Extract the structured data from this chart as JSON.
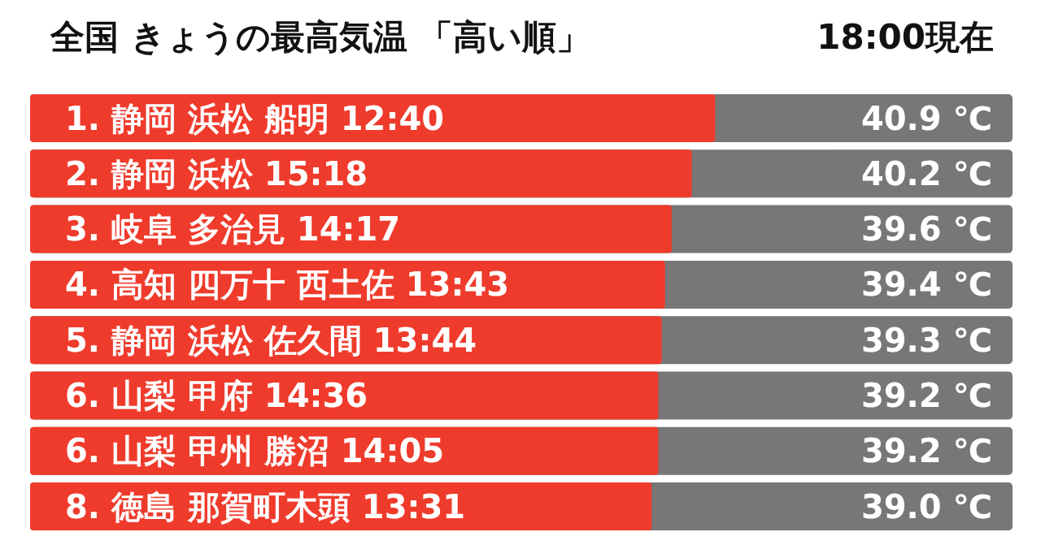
{
  "chart_data": {
    "type": "bar",
    "orientation": "horizontal",
    "title": "全国 きょうの最高気温 「高い順」",
    "subtitle": "18:00現在",
    "categories": [
      "1. 静岡 浜松 船明 12:40",
      "2. 静岡 浜松 15:18",
      "3. 岐阜 多治見 14:17",
      "4. 高知 四万十 西土佐 13:43",
      "5. 静岡 浜松 佐久間 13:44",
      "6. 山梨 甲府 14:36",
      "6. 山梨 甲州 勝沼 14:05",
      "8. 徳島 那賀町木頭 13:31"
    ],
    "values": [
      40.9,
      40.2,
      39.6,
      39.4,
      39.3,
      39.2,
      39.2,
      39.0
    ],
    "value_labels": [
      "40.9 ℃",
      "40.2 ℃",
      "39.6 ℃",
      "39.4 ℃",
      "39.3 ℃",
      "39.2 ℃",
      "39.2 ℃",
      "39.0 ℃"
    ],
    "color": "#ef3b2c",
    "xlim": [
      20.4,
      49.8
    ]
  }
}
